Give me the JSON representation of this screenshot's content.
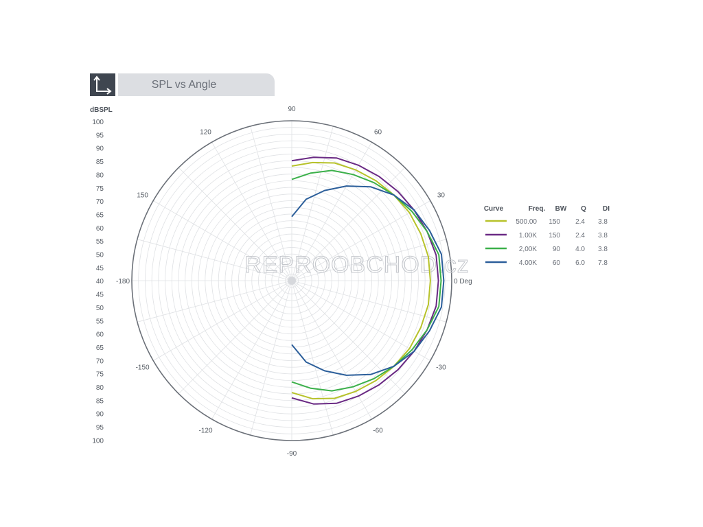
{
  "header": {
    "title": "SPL vs Angle",
    "icon": "axes-icon"
  },
  "watermark": {
    "text": "REPROOBCHOD.cz"
  },
  "chart_data": {
    "type": "polar-line",
    "title": "SPL vs Angle",
    "radial_axis": {
      "label": "dBSPL",
      "range": [
        40,
        100
      ],
      "ticks_top": [
        "100",
        "95",
        "90",
        "85",
        "80",
        "75",
        "70",
        "65",
        "60",
        "55",
        "50",
        "45",
        "40"
      ],
      "ticks_bottom": [
        "45",
        "50",
        "55",
        "60",
        "65",
        "70",
        "75",
        "80",
        "85",
        "90",
        "95",
        "100"
      ]
    },
    "angle_labels": [
      {
        "angle": 0,
        "text": "0 Deg"
      },
      {
        "angle": 30,
        "text": "30"
      },
      {
        "angle": 60,
        "text": "60"
      },
      {
        "angle": 90,
        "text": "90"
      },
      {
        "angle": 120,
        "text": "120"
      },
      {
        "angle": 150,
        "text": "150"
      },
      {
        "angle": 180,
        "text": "-180"
      },
      {
        "angle": -150,
        "text": "-150"
      },
      {
        "angle": -120,
        "text": "-120"
      },
      {
        "angle": -90,
        "text": "-90"
      },
      {
        "angle": -60,
        "text": "-60"
      },
      {
        "angle": -30,
        "text": "-30"
      }
    ],
    "angles": [
      -90,
      -80,
      -70,
      -60,
      -50,
      -40,
      -30,
      -20,
      -10,
      0,
      10,
      20,
      30,
      40,
      50,
      60,
      70,
      80,
      90
    ],
    "series": [
      {
        "name": "500.00",
        "color": "#b7c22a",
        "values": [
          82,
          85,
          87,
          88,
          89,
          90,
          91,
          91.5,
          92,
          92,
          92,
          91.5,
          91,
          90,
          89,
          88,
          87,
          85,
          83
        ]
      },
      {
        "name": "1.00K",
        "color": "#6a2a84",
        "values": [
          84,
          87,
          89,
          90,
          91,
          92,
          93,
          94,
          95,
          95,
          95,
          94,
          93,
          92,
          91,
          90,
          89,
          87,
          85
        ]
      },
      {
        "name": "2,00K",
        "color": "#3bb04a",
        "values": [
          78,
          81,
          84,
          86,
          88,
          90,
          92,
          94,
          96,
          96,
          96,
          94,
          92,
          90,
          88,
          86,
          84,
          81,
          78
        ]
      },
      {
        "name": "4.00K",
        "color": "#2b5e9a",
        "values": [
          64,
          71,
          76,
          81,
          86,
          90,
          93,
          95,
          97,
          97,
          97,
          95,
          93,
          90,
          86,
          81,
          76,
          71,
          64
        ]
      }
    ],
    "legend": {
      "position": "right",
      "columns": [
        "Curve",
        "Freq.",
        "BW",
        "Q",
        "DI"
      ],
      "rows": [
        {
          "freq": "500.00",
          "bw": "150",
          "q": "2.4",
          "di": "3.8",
          "color": "#b7c22a"
        },
        {
          "freq": "1.00K",
          "bw": "150",
          "q": "2.4",
          "di": "3.8",
          "color": "#6a2a84"
        },
        {
          "freq": "2,00K",
          "bw": "90",
          "q": "4.0",
          "di": "3.8",
          "color": "#3bb04a"
        },
        {
          "freq": "4.00K",
          "bw": "60",
          "q": "6.0",
          "di": "7.8",
          "color": "#2b5e9a"
        }
      ]
    }
  }
}
